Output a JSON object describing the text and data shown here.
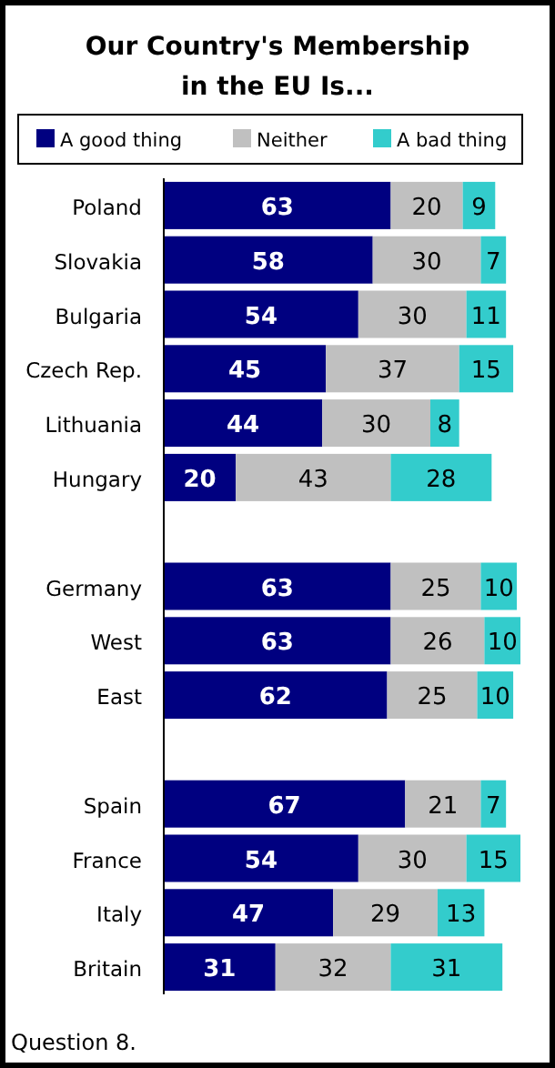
{
  "chart_data": {
    "type": "bar",
    "orientation": "horizontal",
    "stacked": true,
    "title": "Our Country's Membership in the EU Is...",
    "categories": [
      "Poland",
      "Slovakia",
      "Bulgaria",
      "Czech Rep.",
      "Lithuania",
      "Hungary",
      null,
      "Germany",
      "West",
      "East",
      null,
      "Spain",
      "France",
      "Italy",
      "Britain"
    ],
    "series": [
      {
        "name": "A good thing",
        "color": "#000080",
        "values": [
          63,
          58,
          54,
          45,
          44,
          20,
          null,
          63,
          63,
          62,
          null,
          67,
          54,
          47,
          31
        ]
      },
      {
        "name": "Neither",
        "color": "#c0c0c0",
        "values": [
          20,
          30,
          30,
          37,
          30,
          43,
          null,
          25,
          26,
          25,
          null,
          21,
          30,
          29,
          32
        ]
      },
      {
        "name": "A bad thing",
        "color": "#33cccc",
        "values": [
          9,
          7,
          11,
          15,
          8,
          28,
          null,
          10,
          10,
          10,
          null,
          7,
          15,
          13,
          31
        ]
      }
    ],
    "data_labels": true,
    "legend": "top",
    "annotations": [
      "Question 8."
    ]
  }
}
